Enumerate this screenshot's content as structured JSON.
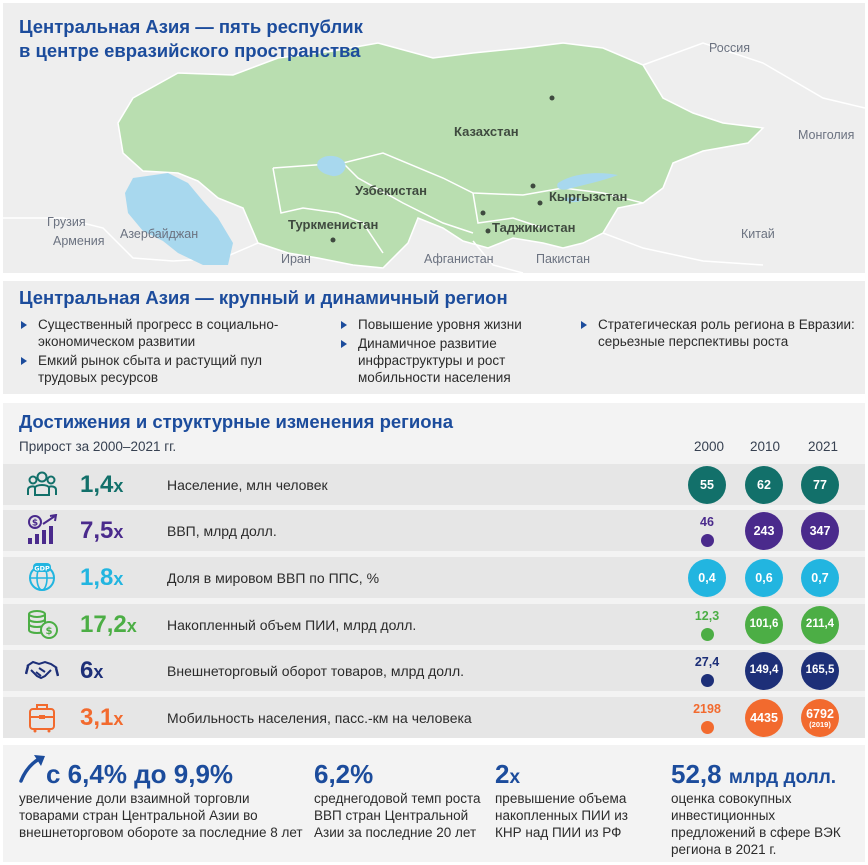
{
  "map": {
    "title_line1": "Центральная Азия — пять республик",
    "title_line2": "в центре евразийского пространства",
    "labels": {
      "russia": "Россия",
      "kazakhstan": "Казахстан",
      "mongolia": "Монголия",
      "uzbekistan": "Узбекистан",
      "kyrgyzstan": "Кыргызстан",
      "georgia": "Грузия",
      "armenia": "Армения",
      "azerbaijan": "Азербайджан",
      "turkmenistan": "Туркменистан",
      "tajikistan": "Таджикистан",
      "china": "Китай",
      "iran": "Иран",
      "afghanistan": "Афганистан",
      "pakistan": "Пакистан"
    },
    "colors": {
      "ca_land": "#b9deb0",
      "water": "#a8d8ee",
      "background": "#eeeeee"
    }
  },
  "region": {
    "title": "Центральная Азия — крупный и динамичный регион",
    "bullets": [
      "Существенный прогресс в социально-экономическом развитии",
      "Емкий рынок сбыта и растущий пул трудовых ресурсов",
      "Повышение уровня жизни",
      "Динамичное развитие инфраструктуры и рост мобильности населения",
      "Стратегическая роль региона в Евразии: серьезные перспективы роста"
    ]
  },
  "achievements": {
    "title": "Достижения и структурные изменения региона",
    "subtitle": "Прирост за 2000–2021 гг.",
    "years": [
      "2000",
      "2010",
      "2021"
    ],
    "rows": [
      {
        "icon": "people-icon",
        "multiplier": "1,4",
        "x": "x",
        "label": "Население, млн человек",
        "color": "#12706a",
        "values": [
          "55",
          "62",
          "77"
        ],
        "scale": [
          1,
          1,
          1
        ]
      },
      {
        "icon": "gdp-growth-icon",
        "multiplier": "7,5",
        "x": "x",
        "label": "ВВП, млрд долл.",
        "color": "#4a2a8c",
        "values": [
          "46",
          "243",
          "347"
        ],
        "scale": [
          0,
          1,
          1
        ]
      },
      {
        "icon": "gdp-globe-icon",
        "multiplier": "1,8",
        "x": "x",
        "label": "Доля в мировом ВВП по ППС, %",
        "color": "#22b5e0",
        "values": [
          "0,4",
          "0,6",
          "0,7"
        ],
        "scale": [
          1,
          1,
          1
        ]
      },
      {
        "icon": "coins-icon",
        "multiplier": "17,2",
        "x": "x",
        "label": "Накопленный объем ПИИ, млрд долл.",
        "color": "#4cae45",
        "values": [
          "12,3",
          "101,6",
          "211,4"
        ],
        "scale": [
          0,
          1,
          1
        ]
      },
      {
        "icon": "handshake-icon",
        "multiplier": "6",
        "x": "x",
        "label": "Внешнеторговый оборот товаров, млрд долл.",
        "color": "#1d2f78",
        "values": [
          "27,4",
          "149,4",
          "165,5"
        ],
        "scale": [
          0,
          1,
          1
        ]
      },
      {
        "icon": "suitcase-icon",
        "multiplier": "3,1",
        "x": "x",
        "label": "Мобильность населения, пасс.-км на человека",
        "color": "#f26a2e",
        "values": [
          "2198",
          "4435",
          "6792"
        ],
        "note_2021": "(2019)",
        "scale": [
          0,
          1,
          1
        ]
      }
    ]
  },
  "stats": [
    {
      "big": "с 6,4% до 9,9%",
      "big_suffix": "",
      "text": "увеличение доли взаимной торговли товарами стран Центральной Азии во внешнеторговом обороте за последние 8 лет"
    },
    {
      "big": "6,2%",
      "big_suffix": "",
      "text": "среднегодовой темп роста ВВП стран Центральной Азии за последние 20 лет"
    },
    {
      "big": "2",
      "big_suffix": "x",
      "text": "превышение объема накопленных ПИИ из КНР над ПИИ из РФ"
    },
    {
      "big": "52,8",
      "big_suffix": "млрд долл.",
      "text": "оценка совокупных инвестиционных предложений в сфере ВЭК региона в 2021 г."
    }
  ]
}
